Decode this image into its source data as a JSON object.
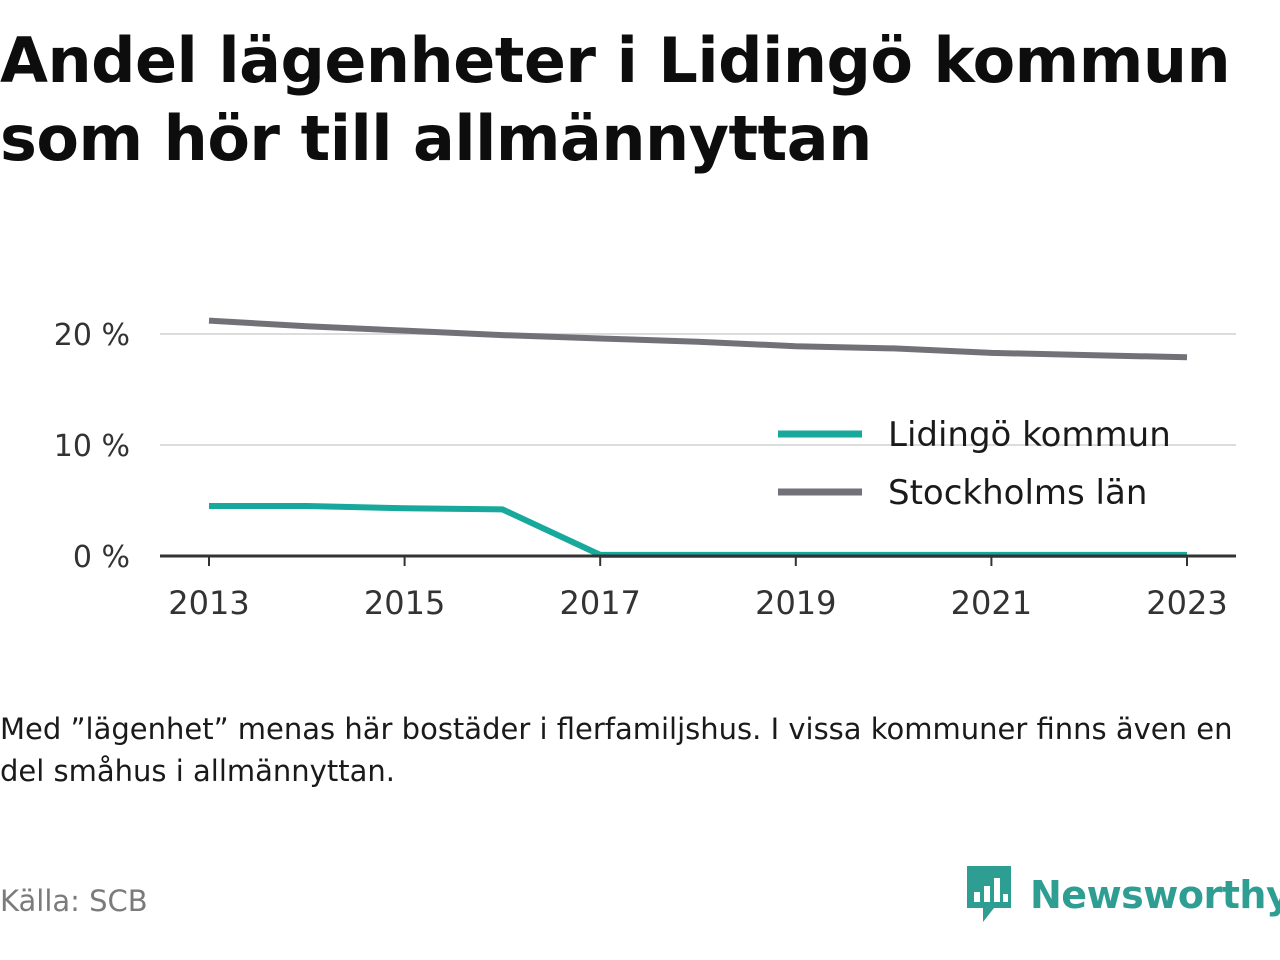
{
  "header": {
    "title_line1": "Andel lägenheter i Lidingö kommun",
    "title_line2": "som hör till allmännyttan"
  },
  "chart_data": {
    "type": "line",
    "x": [
      2013,
      2014,
      2015,
      2016,
      2017,
      2018,
      2019,
      2020,
      2021,
      2022,
      2023
    ],
    "x_tick_labels": [
      "2013",
      "2015",
      "2017",
      "2019",
      "2021",
      "2023"
    ],
    "y_tick_labels": [
      "0 %",
      "10 %",
      "20 %"
    ],
    "y_ticks": [
      0,
      10,
      20
    ],
    "ylim": [
      0,
      22
    ],
    "grid": true,
    "legend_position": "right",
    "series": [
      {
        "name": "Lidingö kommun",
        "color": "#16a99c",
        "values": [
          4.5,
          4.5,
          4.3,
          4.2,
          0.1,
          0.1,
          0.1,
          0.1,
          0.1,
          0.1,
          0.1
        ]
      },
      {
        "name": "Stockholms län",
        "color": "#727178",
        "values": [
          21.2,
          20.7,
          20.3,
          19.9,
          19.6,
          19.3,
          18.9,
          18.7,
          18.3,
          18.1,
          17.9
        ]
      }
    ]
  },
  "footer": {
    "note": "Med ”lägenhet” menas här bostäder i flerfamiljshus. I vissa kommuner finns även en del småhus i allmännyttan.",
    "source": "Källa: SCB",
    "brand": "Newsworthy",
    "brand_color": "#2e9e92",
    "brand_icon": "bar-chart-speech-bubble-icon"
  }
}
